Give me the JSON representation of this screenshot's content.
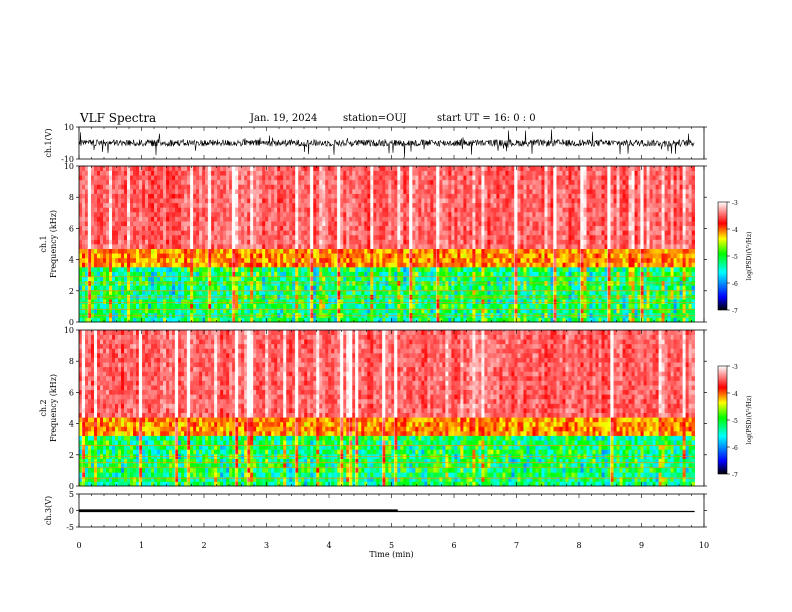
{
  "header": {
    "title": "VLF Spectra",
    "date": "Jan. 19, 2024",
    "station": "station=OUJ",
    "start_time": "start UT =  16: 0  : 0"
  },
  "chart_data": [
    {
      "type": "line",
      "name": "ch1-waveform",
      "ylabel": "ch.1(V)",
      "ylim": [
        -10,
        10
      ],
      "yticks": [
        "10",
        "-10"
      ],
      "xlim": [
        0,
        10
      ],
      "description_values": {
        "baseline": 0,
        "typical_amplitude": 3,
        "peak_amplitude": 9
      },
      "x_end": 9.85
    },
    {
      "type": "heatmap",
      "name": "ch1-spectrogram",
      "ylabel": "ch.1\nFrequency (kHz)",
      "ylim": [
        0,
        10
      ],
      "yticks": [
        "0",
        "2",
        "4",
        "6",
        "8",
        "10"
      ],
      "xlim": [
        0,
        10
      ],
      "x_end": 9.85,
      "colorbar": {
        "label": "log(PSD)(V²/Hz)",
        "range": [
          -7,
          -3
        ],
        "ticks": [
          "-3",
          "-4",
          "-5",
          "-6",
          "-7"
        ]
      },
      "bands_khz": [
        0.4,
        0.8,
        1.25,
        1.6,
        2.0,
        2.5,
        2.9
      ],
      "transition_khz": 3.8
    },
    {
      "type": "heatmap",
      "name": "ch2-spectrogram",
      "ylabel": "ch.2\nFrequency (kHz)",
      "ylim": [
        0,
        10
      ],
      "yticks": [
        "0",
        "2",
        "4",
        "6",
        "8",
        "10"
      ],
      "xlim": [
        0,
        10
      ],
      "x_end": 9.85,
      "colorbar": {
        "label": "log(PSD)(V²/Hz)",
        "range": [
          -7,
          -3
        ],
        "ticks": [
          "-3",
          "-4",
          "-5",
          "-6",
          "-7"
        ]
      },
      "bands_khz": [
        0.5,
        1.2,
        1.5,
        1.9,
        2.6
      ],
      "transition_khz": 3.6
    },
    {
      "type": "line",
      "name": "ch3-level",
      "ylabel": "ch.3(V)",
      "ylim": [
        -5,
        5
      ],
      "yticks": [
        "5",
        "0",
        "-5"
      ],
      "xlim": [
        0,
        10
      ],
      "xlabel": "Time (min)",
      "xticks": [
        "0",
        "1",
        "2",
        "3",
        "4",
        "5",
        "6",
        "7",
        "8",
        "9",
        "10"
      ],
      "level": -0.3,
      "x_end": 9.85,
      "thick_segment_end": 5.1
    }
  ],
  "colors": {
    "axis": "#000000",
    "colormap": [
      "#000000",
      "#0000ff",
      "#00ffff",
      "#00ff00",
      "#ffff00",
      "#ff0000",
      "#ffffff"
    ]
  }
}
